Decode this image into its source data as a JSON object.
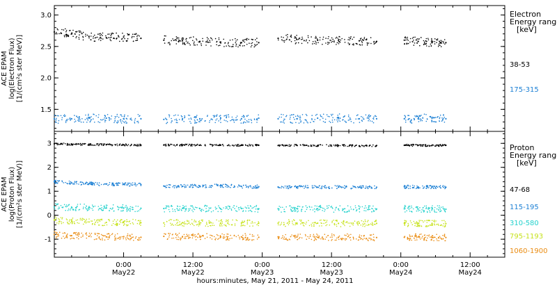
{
  "chart_data": [
    {
      "type": "scatter",
      "panel": "electron",
      "ylabel_lines": [
        "ACE EPAM",
        "log(Electron Flux)",
        "[1/(cm²s ster MeV)]"
      ],
      "ylim": [
        1.15,
        3.15
      ],
      "yticks": [
        1.5,
        2.0,
        2.5,
        3.0
      ],
      "ytick_labels": [
        "1.5",
        "2.0",
        "2.5",
        "3.0"
      ],
      "legend_title": [
        "Electron",
        "Energy range",
        "[keV]"
      ],
      "series": [
        {
          "name": "38-53",
          "color": "#000000",
          "segments": [
            {
              "x": [
                0.0,
                0.25,
                0.5,
                0.75,
                1.0,
                1.25
              ],
              "y": [
                2.73,
                2.7,
                2.66,
                2.64,
                2.65,
                2.63
              ]
            },
            {
              "x": [
                1.58,
                1.85,
                2.1,
                2.4,
                2.7,
                2.95
              ],
              "y": [
                2.6,
                2.59,
                2.58,
                2.57,
                2.56,
                2.56
              ]
            },
            {
              "x": [
                3.23,
                3.5,
                3.8,
                4.1,
                4.4,
                4.65
              ],
              "y": [
                2.63,
                2.61,
                2.6,
                2.6,
                2.59,
                2.58
              ]
            },
            {
              "x": [
                5.05,
                5.25,
                5.45,
                5.65
              ],
              "y": [
                2.6,
                2.58,
                2.56,
                2.56
              ]
            }
          ]
        },
        {
          "name": "175-315",
          "color": "#1a7fd4",
          "segments": [
            {
              "x": [
                0.0,
                0.25,
                0.5,
                0.75,
                1.0,
                1.25
              ],
              "y": [
                1.35,
                1.35,
                1.36,
                1.36,
                1.35,
                1.35
              ]
            },
            {
              "x": [
                1.58,
                1.85,
                2.1,
                2.4,
                2.7,
                2.95
              ],
              "y": [
                1.34,
                1.35,
                1.35,
                1.36,
                1.35,
                1.36
              ]
            },
            {
              "x": [
                3.23,
                3.5,
                3.8,
                4.1,
                4.4,
                4.65
              ],
              "y": [
                1.35,
                1.35,
                1.36,
                1.36,
                1.35,
                1.35
              ]
            },
            {
              "x": [
                5.05,
                5.25,
                5.45,
                5.65
              ],
              "y": [
                1.35,
                1.35,
                1.36,
                1.35
              ]
            }
          ]
        }
      ]
    },
    {
      "type": "scatter",
      "panel": "proton",
      "ylabel_lines": [
        "ACE EPAM",
        "log(Proton Flux)",
        "[1/(cm²s ster MeV)]"
      ],
      "ylim": [
        -1.75,
        3.5
      ],
      "yticks": [
        -1,
        0,
        1,
        2,
        3
      ],
      "ytick_labels": [
        "-1",
        "0",
        "1",
        "2",
        "3"
      ],
      "legend_title": [
        "Proton",
        "Energy range",
        "[keV]"
      ],
      "series": [
        {
          "name": "47-68",
          "color": "#000000",
          "segments": [
            {
              "x": [
                0.0,
                0.25,
                0.5,
                0.75,
                1.0,
                1.25
              ],
              "y": [
                2.98,
                2.96,
                2.95,
                2.94,
                2.94,
                2.93
              ]
            },
            {
              "x": [
                1.58,
                1.85,
                2.1,
                2.4,
                2.7,
                2.95
              ],
              "y": [
                2.93,
                2.93,
                2.92,
                2.93,
                2.92,
                2.92
              ]
            },
            {
              "x": [
                3.23,
                3.5,
                3.8,
                4.1,
                4.4,
                4.65
              ],
              "y": [
                2.91,
                2.92,
                2.91,
                2.91,
                2.9,
                2.91
              ]
            },
            {
              "x": [
                5.05,
                5.25,
                5.45,
                5.65
              ],
              "y": [
                2.92,
                2.92,
                2.91,
                2.92
              ]
            }
          ]
        },
        {
          "name": "115-195",
          "color": "#1a7fd4",
          "segments": [
            {
              "x": [
                0.0,
                0.25,
                0.5,
                0.75,
                1.0,
                1.25
              ],
              "y": [
                1.4,
                1.35,
                1.32,
                1.3,
                1.29,
                1.28
              ]
            },
            {
              "x": [
                1.58,
                1.85,
                2.1,
                2.4,
                2.7,
                2.95
              ],
              "y": [
                1.22,
                1.21,
                1.22,
                1.23,
                1.2,
                1.19
              ]
            },
            {
              "x": [
                3.23,
                3.5,
                3.8,
                4.1,
                4.4,
                4.65
              ],
              "y": [
                1.18,
                1.18,
                1.17,
                1.18,
                1.17,
                1.17
              ]
            },
            {
              "x": [
                5.05,
                5.25,
                5.45,
                5.65
              ],
              "y": [
                1.19,
                1.18,
                1.18,
                1.17
              ]
            }
          ]
        },
        {
          "name": "310-580",
          "color": "#22d1cc",
          "segments": [
            {
              "x": [
                0.0,
                0.25,
                0.5,
                0.75,
                1.0,
                1.25
              ],
              "y": [
                0.35,
                0.33,
                0.32,
                0.3,
                0.3,
                0.29
              ]
            },
            {
              "x": [
                1.58,
                1.85,
                2.1,
                2.4,
                2.7,
                2.95
              ],
              "y": [
                0.28,
                0.29,
                0.28,
                0.27,
                0.28,
                0.27
              ]
            },
            {
              "x": [
                3.23,
                3.5,
                3.8,
                4.1,
                4.4,
                4.65
              ],
              "y": [
                0.27,
                0.28,
                0.27,
                0.26,
                0.27,
                0.26
              ]
            },
            {
              "x": [
                5.05,
                5.25,
                5.45,
                5.65
              ],
              "y": [
                0.27,
                0.26,
                0.26,
                0.25
              ]
            }
          ]
        },
        {
          "name": "795-1193",
          "color": "#c6e21a",
          "segments": [
            {
              "x": [
                0.0,
                0.25,
                0.5,
                0.75,
                1.0,
                1.25
              ],
              "y": [
                -0.2,
                -0.25,
                -0.28,
                -0.3,
                -0.3,
                -0.31
              ]
            },
            {
              "x": [
                1.58,
                1.85,
                2.1,
                2.4,
                2.7,
                2.95
              ],
              "y": [
                -0.32,
                -0.31,
                -0.32,
                -0.33,
                -0.32,
                -0.33
              ]
            },
            {
              "x": [
                3.23,
                3.5,
                3.8,
                4.1,
                4.4,
                4.65
              ],
              "y": [
                -0.33,
                -0.32,
                -0.33,
                -0.34,
                -0.33,
                -0.34
              ]
            },
            {
              "x": [
                5.05,
                5.25,
                5.45,
                5.65
              ],
              "y": [
                -0.33,
                -0.34,
                -0.34,
                -0.35
              ]
            }
          ]
        },
        {
          "name": "1060-1900",
          "color": "#ea8c12",
          "segments": [
            {
              "x": [
                0.0,
                0.25,
                0.5,
                0.75,
                1.0,
                1.25
              ],
              "y": [
                -0.8,
                -0.85,
                -0.88,
                -0.9,
                -0.9,
                -0.92
              ]
            },
            {
              "x": [
                1.58,
                1.85,
                2.1,
                2.4,
                2.7,
                2.95
              ],
              "y": [
                -0.88,
                -0.89,
                -0.9,
                -0.91,
                -0.9,
                -0.92
              ]
            },
            {
              "x": [
                3.23,
                3.5,
                3.8,
                4.1,
                4.4,
                4.65
              ],
              "y": [
                -0.9,
                -0.91,
                -0.92,
                -0.92,
                -0.91,
                -0.93
              ]
            },
            {
              "x": [
                5.05,
                5.25,
                5.45,
                5.65
              ],
              "y": [
                -0.92,
                -0.91,
                -0.93,
                -0.93
              ]
            }
          ]
        }
      ]
    }
  ],
  "time_axis": {
    "xlim": [
      0,
      6.5
    ],
    "major_ticks": [
      {
        "x": 1.0,
        "top": "0:00",
        "bottom": "May22"
      },
      {
        "x": 2.0,
        "top": "12:00",
        "bottom": "May22"
      },
      {
        "x": 3.0,
        "top": "0:00",
        "bottom": "May23"
      },
      {
        "x": 4.0,
        "top": "12:00",
        "bottom": "May23"
      },
      {
        "x": 5.0,
        "top": "0:00",
        "bottom": "May24"
      },
      {
        "x": 6.0,
        "top": "12:00",
        "bottom": "May24"
      }
    ],
    "xlabel": "hours:minutes, May 21, 2011 - May 24, 2011"
  }
}
